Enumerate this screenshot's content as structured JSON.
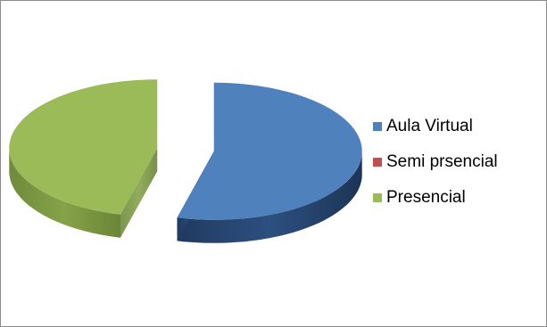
{
  "chart_data": {
    "type": "pie",
    "style": "3d-exploded",
    "categories": [
      "Aula Virtual",
      "Semi prsencial",
      "Presencial"
    ],
    "values": [
      54,
      0,
      46
    ],
    "colors": [
      "#4f81bd",
      "#c0504d",
      "#9bbb59"
    ],
    "legend_position": "right"
  }
}
